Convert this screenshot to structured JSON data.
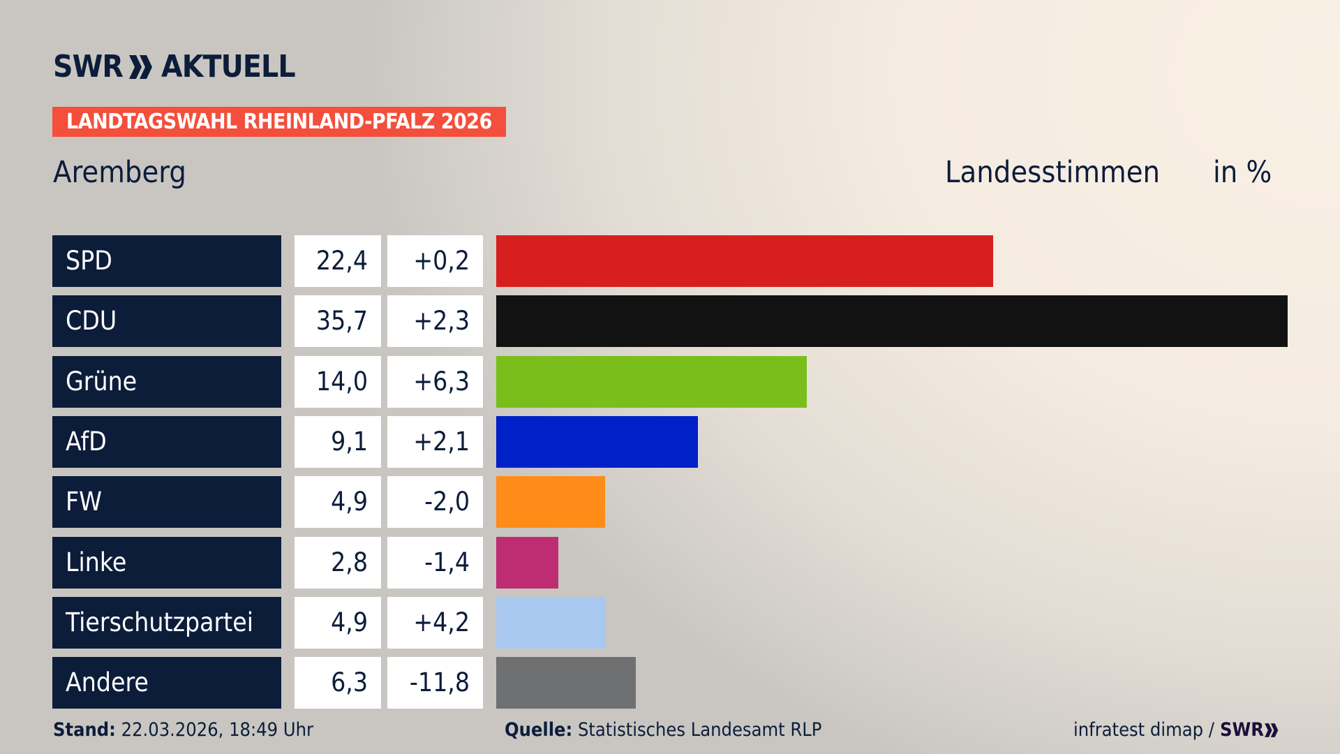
{
  "header": {
    "logo_text": "SWR",
    "logo_suffix": "AKTUELL",
    "banner": "LANDTAGSWAHL RHEINLAND-PFALZ 2026",
    "district": "Aremberg",
    "column_title": "Landesstimmen",
    "unit": "in %"
  },
  "chart_data": {
    "type": "bar",
    "orientation": "horizontal",
    "categories": [
      "SPD",
      "CDU",
      "Grüne",
      "AfD",
      "FW",
      "Linke",
      "Tierschutzpartei",
      "Andere"
    ],
    "values": [
      22.4,
      35.7,
      14.0,
      9.1,
      4.9,
      2.8,
      4.9,
      6.3
    ],
    "labels": [
      "22,4",
      "35,7",
      "14,0",
      "9,1",
      "4,9",
      "2,8",
      "4,9",
      "6,3"
    ],
    "diffs": [
      "+0,2",
      "+2,3",
      "+6,3",
      "+2,1",
      "-2,0",
      "-1,4",
      "+4,2",
      "-11,8"
    ],
    "colors": [
      "#d81f1f",
      "#121212",
      "#79be1b",
      "#0020c8",
      "#ff8c19",
      "#be2d72",
      "#a9c8ef",
      "#6f7071"
    ],
    "xlim": [
      0,
      35.7
    ]
  },
  "footer": {
    "stand_label": "Stand:",
    "stand_value": "22.03.2026, 18:49 Uhr",
    "source_label": "Quelle:",
    "source_value": "Statistisches Landesamt RLP",
    "credit": "infratest dimap /",
    "credit_logo": "SWR"
  }
}
